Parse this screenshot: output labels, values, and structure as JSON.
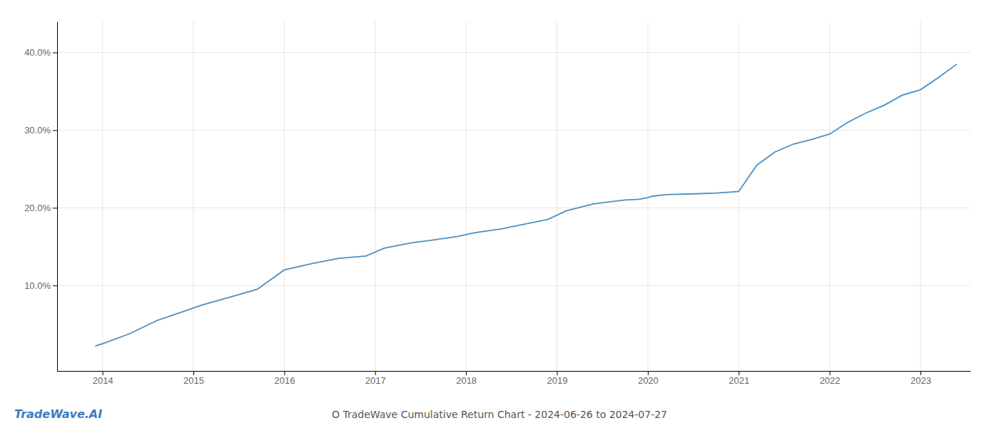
{
  "chart_data": {
    "type": "line",
    "title": "O TradeWave Cumulative Return Chart - 2024-06-26 to 2024-07-27",
    "annotations": [
      "TradeWave.AI"
    ],
    "color": "#4a90c4",
    "x": [
      2013.92,
      2014.0,
      2014.3,
      2014.6,
      2014.9,
      2015.1,
      2015.4,
      2015.7,
      2016.0,
      2016.3,
      2016.6,
      2016.9,
      2017.1,
      2017.4,
      2017.6,
      2017.9,
      2018.1,
      2018.4,
      2018.6,
      2018.9,
      2019.1,
      2019.4,
      2019.6,
      2019.75,
      2019.9,
      2020.0,
      2020.05,
      2020.2,
      2020.5,
      2020.75,
      2021.0,
      2021.2,
      2021.4,
      2021.6,
      2021.8,
      2022.0,
      2022.2,
      2022.4,
      2022.6,
      2022.8,
      2023.0,
      2023.2,
      2023.4
    ],
    "values": [
      0.022,
      0.025,
      0.038,
      0.055,
      0.067,
      0.075,
      0.085,
      0.095,
      0.12,
      0.128,
      0.135,
      0.138,
      0.148,
      0.155,
      0.158,
      0.163,
      0.168,
      0.173,
      0.178,
      0.185,
      0.196,
      0.205,
      0.208,
      0.21,
      0.211,
      0.213,
      0.215,
      0.217,
      0.218,
      0.219,
      0.221,
      0.255,
      0.272,
      0.282,
      0.288,
      0.295,
      0.31,
      0.322,
      0.332,
      0.345,
      0.352,
      0.368,
      0.385
    ],
    "xlim": [
      2013.5,
      2023.55
    ],
    "ylim": [
      -0.01,
      0.44
    ],
    "xticks": [
      2014,
      2015,
      2016,
      2017,
      2018,
      2019,
      2020,
      2021,
      2022,
      2023
    ],
    "yticks": [
      {
        "value": 0.1,
        "label": "10.0%"
      },
      {
        "value": 0.2,
        "label": "20.0%"
      },
      {
        "value": 0.3,
        "label": "30.0%"
      },
      {
        "value": 0.4,
        "label": "40.0%"
      }
    ],
    "grid": true
  }
}
